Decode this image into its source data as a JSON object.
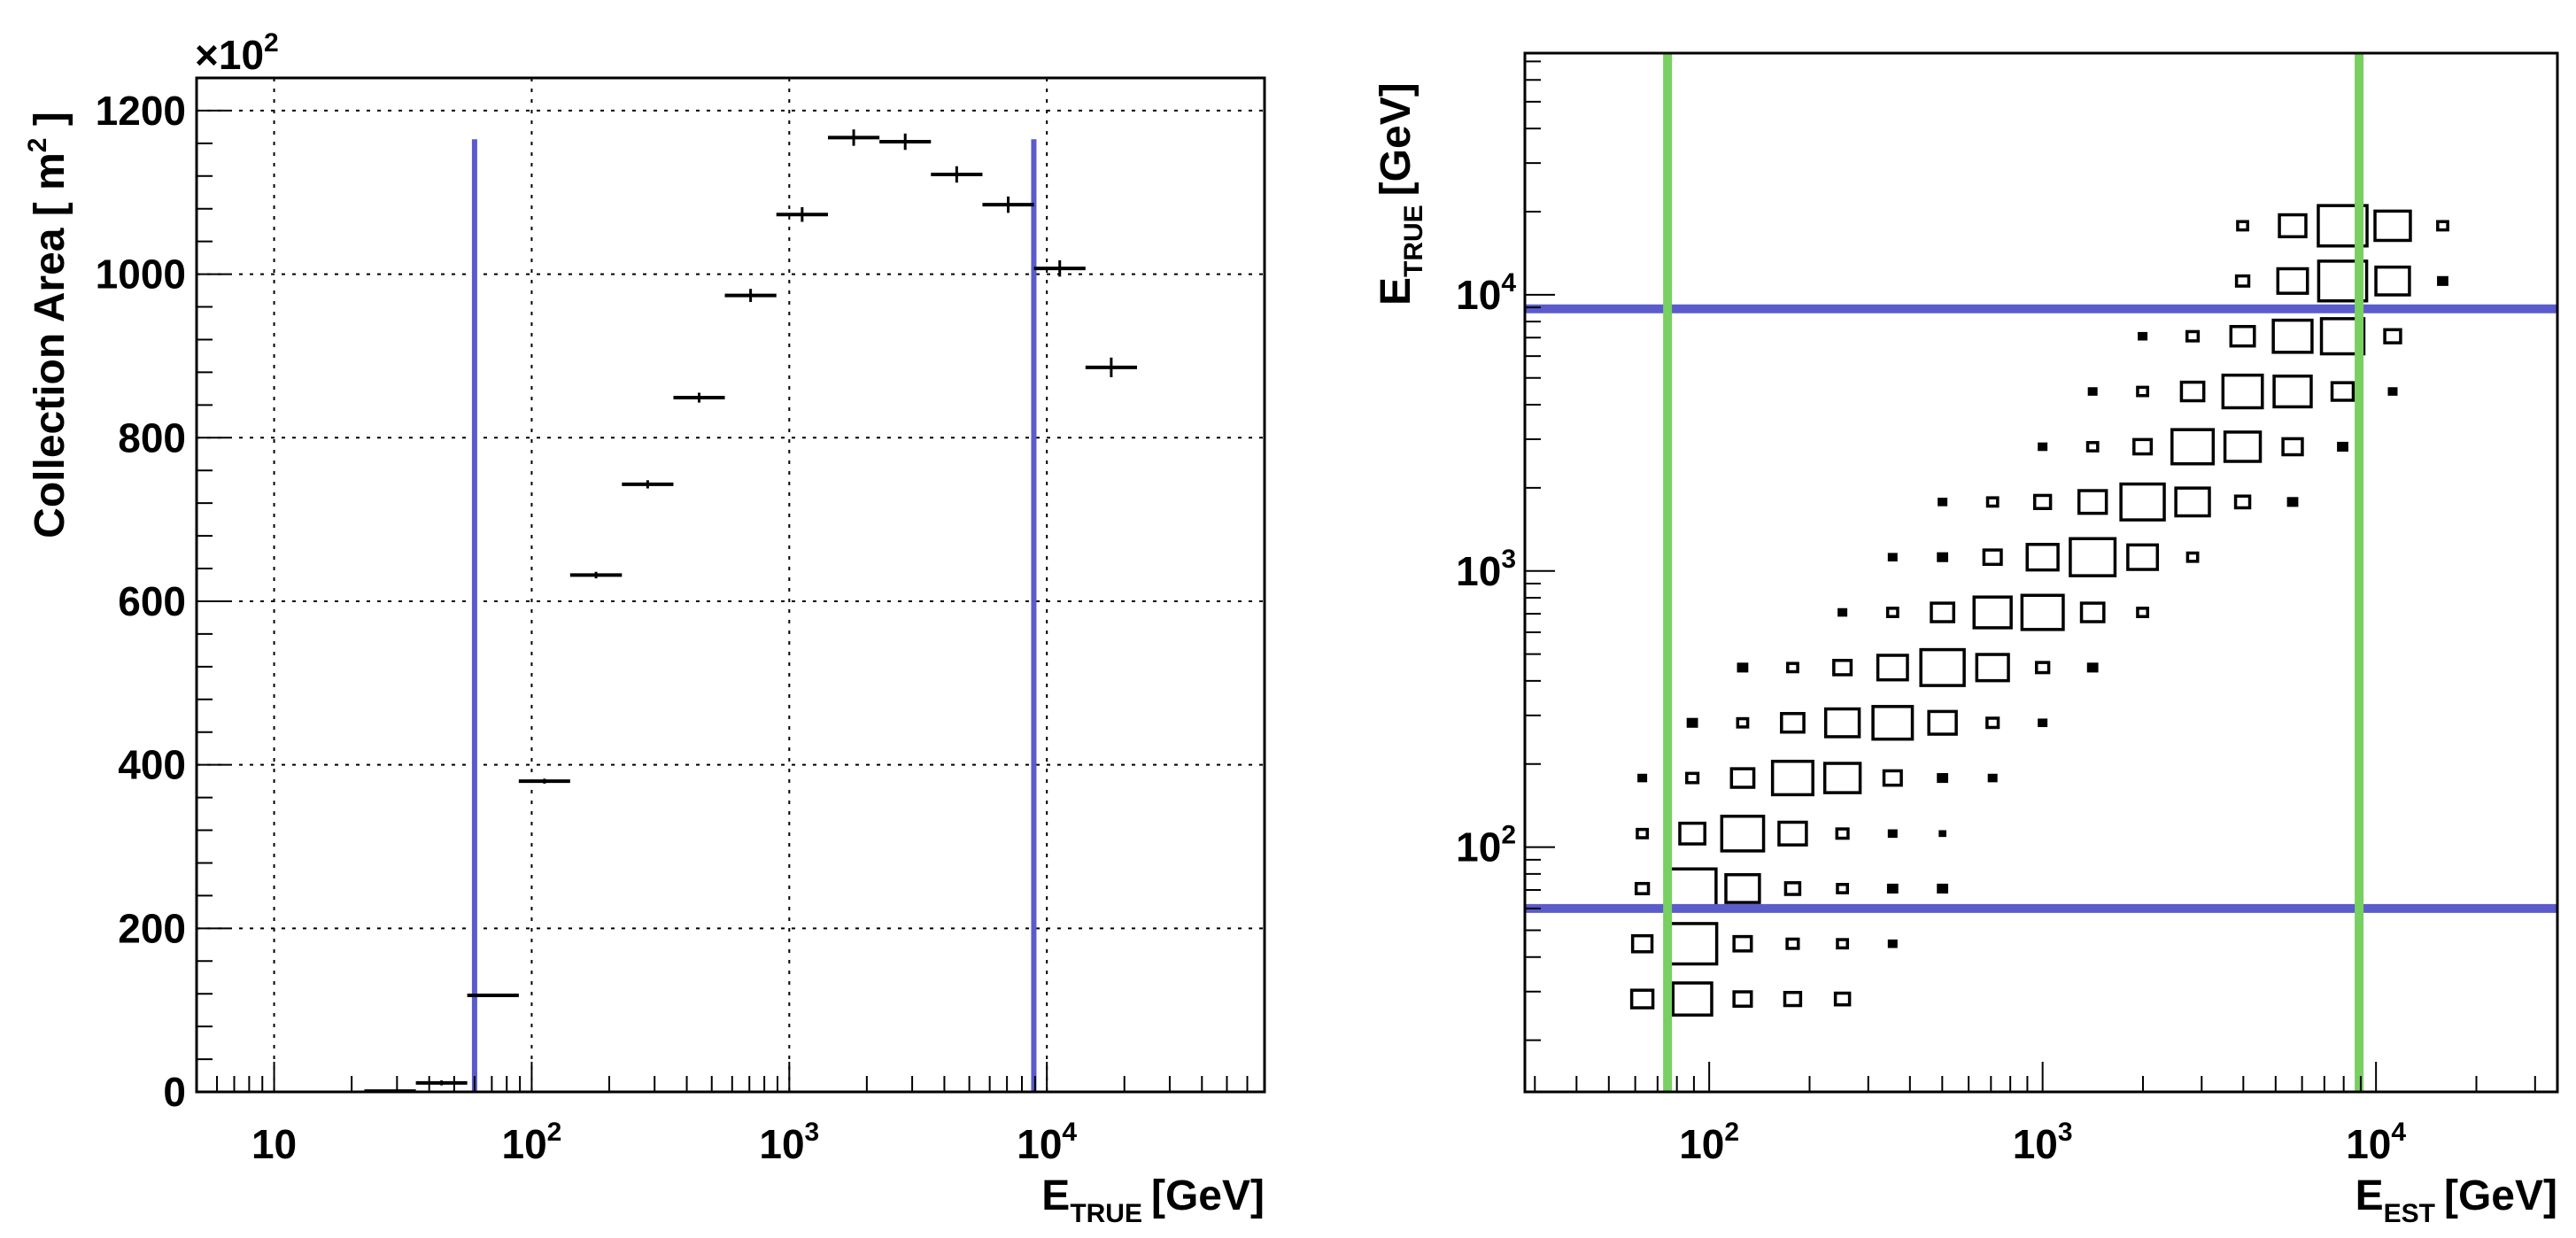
{
  "chart_data": [
    {
      "type": "histogram",
      "title": "",
      "ylabel_prefix": "Collection Area",
      "ylabel_unit": "m",
      "ylabel_unit_exp": "2",
      "y_multiplier_prefix": "×10",
      "y_multiplier_exp": "2",
      "xlabel_main": "E",
      "xlabel_sub": "TRUE",
      "xlabel_unit": "[GeV]",
      "x_scale": "log",
      "xlim": [
        5,
        70000
      ],
      "ylim": [
        0,
        1240
      ],
      "grid": true,
      "y_ticks": [
        {
          "value": 0,
          "label": "0"
        },
        {
          "value": 200,
          "label": "200"
        },
        {
          "value": 400,
          "label": "400"
        },
        {
          "value": 600,
          "label": "600"
        },
        {
          "value": 800,
          "label": "800"
        },
        {
          "value": 1000,
          "label": "1000"
        },
        {
          "value": 1200,
          "label": "1200"
        }
      ],
      "x_ticks": [
        {
          "value": 10,
          "base": "10",
          "exp": ""
        },
        {
          "value": 100,
          "base": "10",
          "exp": "2"
        },
        {
          "value": 1000,
          "base": "10",
          "exp": "3"
        },
        {
          "value": 10000,
          "base": "10",
          "exp": "4"
        }
      ],
      "points": [
        {
          "x0": 22.4,
          "x1": 35.5,
          "y": 1,
          "err": 1
        },
        {
          "x0": 35.5,
          "x1": 56.2,
          "y": 11,
          "err": 3
        },
        {
          "x0": 56.2,
          "x1": 89.1,
          "y": 118,
          "err": 2
        },
        {
          "x0": 89.1,
          "x1": 141,
          "y": 380,
          "err": 3
        },
        {
          "x0": 141,
          "x1": 224,
          "y": 632,
          "err": 4
        },
        {
          "x0": 224,
          "x1": 355,
          "y": 743,
          "err": 5
        },
        {
          "x0": 355,
          "x1": 562,
          "y": 849,
          "err": 6
        },
        {
          "x0": 562,
          "x1": 891,
          "y": 974,
          "err": 8
        },
        {
          "x0": 891,
          "x1": 1413,
          "y": 1073,
          "err": 9
        },
        {
          "x0": 1413,
          "x1": 2239,
          "y": 1167,
          "err": 10
        },
        {
          "x0": 2239,
          "x1": 3548,
          "y": 1162,
          "err": 10
        },
        {
          "x0": 3548,
          "x1": 5623,
          "y": 1122,
          "err": 10
        },
        {
          "x0": 5623,
          "x1": 8913,
          "y": 1085,
          "err": 10
        },
        {
          "x0": 8913,
          "x1": 14125,
          "y": 1007,
          "err": 10
        },
        {
          "x0": 14125,
          "x1": 22387,
          "y": 886,
          "err": 12
        }
      ],
      "vertical_cut_lines": [
        {
          "x": 60,
          "color": "#5b5bcc"
        },
        {
          "x": 8900,
          "color": "#5b5bcc"
        }
      ]
    },
    {
      "type": "box2d",
      "title": "",
      "xlabel_main": "E",
      "xlabel_sub": "EST",
      "xlabel_unit": "[GeV]",
      "ylabel_main": "E",
      "ylabel_sub": "TRUE",
      "ylabel_unit": "[GeV]",
      "x_scale": "log",
      "y_scale": "log",
      "xlim": [
        28,
        35000
      ],
      "ylim": [
        13,
        75000
      ],
      "grid": false,
      "x_ticks": [
        {
          "value": 100,
          "base": "10",
          "exp": "2"
        },
        {
          "value": 1000,
          "base": "10",
          "exp": "3"
        },
        {
          "value": 10000,
          "base": "10",
          "exp": "4"
        }
      ],
      "y_ticks": [
        {
          "value": 100,
          "base": "10",
          "exp": "2"
        },
        {
          "value": 1000,
          "base": "10",
          "exp": "3"
        },
        {
          "value": 10000,
          "base": "10",
          "exp": "4"
        }
      ],
      "x_bin_centers": [
        63,
        89,
        126,
        178,
        251,
        355,
        501,
        708,
        1000,
        1413,
        1995,
        2818,
        3981,
        5623,
        7943,
        11220,
        15849
      ],
      "y_bin_centers": [
        28.2,
        44.7,
        70.8,
        112,
        178,
        282,
        447,
        708,
        1122,
        1778,
        2818,
        4467,
        7079,
        11220,
        17783,
        28184
      ],
      "cells": [
        {
          "xi": 0,
          "yi": 0,
          "v": 0.18
        },
        {
          "xi": 1,
          "yi": 0,
          "v": 0.6
        },
        {
          "xi": 2,
          "yi": 0,
          "v": 0.12
        },
        {
          "xi": 3,
          "yi": 0,
          "v": 0.1
        },
        {
          "xi": 4,
          "yi": 0,
          "v": 0.08
        },
        {
          "xi": 0,
          "yi": 1,
          "v": 0.15
        },
        {
          "xi": 1,
          "yi": 1,
          "v": 0.95
        },
        {
          "xi": 2,
          "yi": 1,
          "v": 0.12
        },
        {
          "xi": 3,
          "yi": 1,
          "v": 0.05
        },
        {
          "xi": 4,
          "yi": 1,
          "v": 0.04
        },
        {
          "xi": 5,
          "yi": 1,
          "v": 0.02
        },
        {
          "xi": 0,
          "yi": 2,
          "v": 0.06
        },
        {
          "xi": 1,
          "yi": 2,
          "v": 0.9
        },
        {
          "xi": 2,
          "yi": 2,
          "v": 0.45
        },
        {
          "xi": 3,
          "yi": 2,
          "v": 0.08
        },
        {
          "xi": 4,
          "yi": 2,
          "v": 0.04
        },
        {
          "xi": 5,
          "yi": 2,
          "v": 0.03
        },
        {
          "xi": 6,
          "yi": 2,
          "v": 0.03
        },
        {
          "xi": 0,
          "yi": 3,
          "v": 0.04
        },
        {
          "xi": 1,
          "yi": 3,
          "v": 0.25
        },
        {
          "xi": 2,
          "yi": 3,
          "v": 0.7
        },
        {
          "xi": 3,
          "yi": 3,
          "v": 0.3
        },
        {
          "xi": 4,
          "yi": 3,
          "v": 0.05
        },
        {
          "xi": 5,
          "yi": 3,
          "v": 0.02
        },
        {
          "xi": 6,
          "yi": 3,
          "v": 0.01
        },
        {
          "xi": 0,
          "yi": 4,
          "v": 0.02
        },
        {
          "xi": 1,
          "yi": 4,
          "v": 0.05
        },
        {
          "xi": 2,
          "yi": 4,
          "v": 0.2
        },
        {
          "xi": 3,
          "yi": 4,
          "v": 0.65
        },
        {
          "xi": 4,
          "yi": 4,
          "v": 0.5
        },
        {
          "xi": 5,
          "yi": 4,
          "v": 0.12
        },
        {
          "xi": 6,
          "yi": 4,
          "v": 0.03
        },
        {
          "xi": 7,
          "yi": 4,
          "v": 0.02
        },
        {
          "xi": 1,
          "yi": 5,
          "v": 0.03
        },
        {
          "xi": 2,
          "yi": 5,
          "v": 0.04
        },
        {
          "xi": 3,
          "yi": 5,
          "v": 0.2
        },
        {
          "xi": 4,
          "yi": 5,
          "v": 0.45
        },
        {
          "xi": 5,
          "yi": 5,
          "v": 0.62
        },
        {
          "xi": 6,
          "yi": 5,
          "v": 0.3
        },
        {
          "xi": 7,
          "yi": 5,
          "v": 0.05
        },
        {
          "xi": 8,
          "yi": 5,
          "v": 0.02
        },
        {
          "xi": 2,
          "yi": 6,
          "v": 0.03
        },
        {
          "xi": 3,
          "yi": 6,
          "v": 0.04
        },
        {
          "xi": 4,
          "yi": 6,
          "v": 0.12
        },
        {
          "xi": 5,
          "yi": 6,
          "v": 0.35
        },
        {
          "xi": 6,
          "yi": 6,
          "v": 0.75
        },
        {
          "xi": 7,
          "yi": 6,
          "v": 0.4
        },
        {
          "xi": 8,
          "yi": 6,
          "v": 0.06
        },
        {
          "xi": 9,
          "yi": 6,
          "v": 0.03
        },
        {
          "xi": 4,
          "yi": 7,
          "v": 0.02
        },
        {
          "xi": 5,
          "yi": 7,
          "v": 0.04
        },
        {
          "xi": 6,
          "yi": 7,
          "v": 0.2
        },
        {
          "xi": 7,
          "yi": 7,
          "v": 0.55
        },
        {
          "xi": 8,
          "yi": 7,
          "v": 0.68
        },
        {
          "xi": 9,
          "yi": 7,
          "v": 0.2
        },
        {
          "xi": 10,
          "yi": 7,
          "v": 0.04
        },
        {
          "xi": 5,
          "yi": 8,
          "v": 0.02
        },
        {
          "xi": 6,
          "yi": 8,
          "v": 0.03
        },
        {
          "xi": 7,
          "yi": 8,
          "v": 0.12
        },
        {
          "xi": 8,
          "yi": 8,
          "v": 0.38
        },
        {
          "xi": 9,
          "yi": 8,
          "v": 0.8
        },
        {
          "xi": 10,
          "yi": 8,
          "v": 0.35
        },
        {
          "xi": 11,
          "yi": 8,
          "v": 0.04
        },
        {
          "xi": 6,
          "yi": 9,
          "v": 0.02
        },
        {
          "xi": 7,
          "yi": 9,
          "v": 0.04
        },
        {
          "xi": 8,
          "yi": 9,
          "v": 0.1
        },
        {
          "xi": 9,
          "yi": 9,
          "v": 0.3
        },
        {
          "xi": 10,
          "yi": 9,
          "v": 0.75
        },
        {
          "xi": 11,
          "yi": 9,
          "v": 0.45
        },
        {
          "xi": 12,
          "yi": 9,
          "v": 0.08
        },
        {
          "xi": 13,
          "yi": 9,
          "v": 0.03
        },
        {
          "xi": 8,
          "yi": 10,
          "v": 0.02
        },
        {
          "xi": 9,
          "yi": 10,
          "v": 0.04
        },
        {
          "xi": 10,
          "yi": 10,
          "v": 0.12
        },
        {
          "xi": 11,
          "yi": 10,
          "v": 0.68
        },
        {
          "xi": 12,
          "yi": 10,
          "v": 0.5
        },
        {
          "xi": 13,
          "yi": 10,
          "v": 0.15
        },
        {
          "xi": 14,
          "yi": 10,
          "v": 0.03
        },
        {
          "xi": 9,
          "yi": 11,
          "v": 0.02
        },
        {
          "xi": 10,
          "yi": 11,
          "v": 0.04
        },
        {
          "xi": 11,
          "yi": 11,
          "v": 0.2
        },
        {
          "xi": 12,
          "yi": 11,
          "v": 0.62
        },
        {
          "xi": 13,
          "yi": 11,
          "v": 0.55
        },
        {
          "xi": 14,
          "yi": 11,
          "v": 0.18
        },
        {
          "xi": 15,
          "yi": 11,
          "v": 0.02
        },
        {
          "xi": 10,
          "yi": 12,
          "v": 0.02
        },
        {
          "xi": 11,
          "yi": 12,
          "v": 0.05
        },
        {
          "xi": 12,
          "yi": 12,
          "v": 0.22
        },
        {
          "xi": 13,
          "yi": 12,
          "v": 0.6
        },
        {
          "xi": 14,
          "yi": 12,
          "v": 0.72
        },
        {
          "xi": 15,
          "yi": 12,
          "v": 0.1
        },
        {
          "xi": 12,
          "yi": 13,
          "v": 0.06
        },
        {
          "xi": 13,
          "yi": 13,
          "v": 0.35
        },
        {
          "xi": 14,
          "yi": 13,
          "v": 0.92
        },
        {
          "xi": 15,
          "yi": 13,
          "v": 0.45
        },
        {
          "xi": 16,
          "yi": 13,
          "v": 0.03
        },
        {
          "xi": 12,
          "yi": 14,
          "v": 0.04
        },
        {
          "xi": 13,
          "yi": 14,
          "v": 0.28
        },
        {
          "xi": 14,
          "yi": 14,
          "v": 0.95
        },
        {
          "xi": 15,
          "yi": 14,
          "v": 0.5
        },
        {
          "xi": 16,
          "yi": 14,
          "v": 0.04
        }
      ],
      "horizontal_cut_lines": [
        {
          "y": 60,
          "color": "#5b5bcc"
        },
        {
          "y": 8900,
          "color": "#5b5bcc"
        }
      ],
      "vertical_cut_lines": [
        {
          "x": 75,
          "color": "#77d060"
        },
        {
          "x": 8900,
          "color": "#77d060"
        }
      ]
    }
  ]
}
